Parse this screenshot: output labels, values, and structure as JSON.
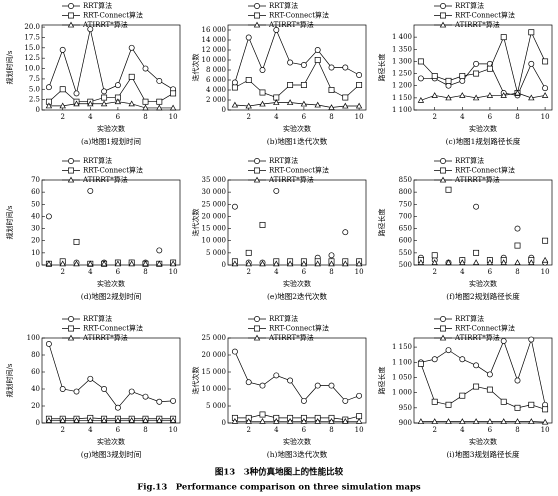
{
  "figure": {
    "caption_cn": "图13　3种仿真地图上的性能比较",
    "caption_en": "Fig.13　Performance comparison on three simulation maps"
  },
  "chart_data": [
    {
      "type": "line",
      "title": "(a)地图1规划时间",
      "xlabel": "实验次数",
      "ylabel": "规划时间/s",
      "x": [
        1,
        2,
        3,
        4,
        5,
        6,
        7,
        8,
        9,
        10
      ],
      "xlim": [
        0.5,
        10.5
      ],
      "xticks": [
        2,
        4,
        6,
        8,
        10
      ],
      "ylim": [
        0,
        20.5
      ],
      "yticks": [
        0,
        2.5,
        {
          "value": 5,
          "label": "5.0"
        },
        7.5,
        {
          "value": 10,
          "label": "10.0"
        },
        12.5,
        {
          "value": 15,
          "label": "15.0"
        },
        17.5,
        {
          "value": 20,
          "label": "20.0"
        }
      ],
      "series": [
        {
          "name": "RRT算法",
          "color": "#000000",
          "marker": "circle",
          "values": [
            5.5,
            14.5,
            4,
            19.5,
            4.5,
            6,
            15,
            10,
            7,
            5
          ]
        },
        {
          "name": "RRT-Connect算法",
          "color": "#000000",
          "marker": "square",
          "values": [
            2,
            5,
            2,
            2,
            3,
            3,
            8,
            2,
            2,
            4
          ]
        },
        {
          "name": "ATIRRT*算法",
          "color": "#000000",
          "marker": "triangle",
          "values": [
            1,
            1,
            1.5,
            1.5,
            1.5,
            2,
            1.5,
            0.5,
            0.5,
            0.5
          ]
        }
      ]
    },
    {
      "type": "line",
      "title": "(b)地图1迭代次数",
      "xlabel": "实验次数",
      "ylabel": "迭代次数",
      "x": [
        1,
        2,
        3,
        4,
        5,
        6,
        7,
        8,
        9,
        10
      ],
      "xlim": [
        0.5,
        10.5
      ],
      "xticks": [
        2,
        4,
        6,
        8,
        10
      ],
      "ylim": [
        0,
        17000
      ],
      "yticks": [
        0,
        {
          "value": 2000,
          "label": "2 000"
        },
        {
          "value": 4000,
          "label": "4 000"
        },
        {
          "value": 6000,
          "label": "6 000"
        },
        {
          "value": 8000,
          "label": "8 000"
        },
        {
          "value": 10000,
          "label": "10 000"
        },
        {
          "value": 12000,
          "label": "12 000"
        },
        {
          "value": 14000,
          "label": "14 000"
        },
        {
          "value": 16000,
          "label": "16 000"
        }
      ],
      "series": [
        {
          "name": "RRT算法",
          "color": "#000000",
          "marker": "circle",
          "values": [
            5500,
            14500,
            8000,
            16000,
            9500,
            9000,
            12000,
            8500,
            8500,
            7000
          ]
        },
        {
          "name": "RRT-Connect算法",
          "color": "#000000",
          "marker": "square",
          "values": [
            4500,
            6000,
            3500,
            2500,
            5000,
            5000,
            10000,
            4000,
            2500,
            5000
          ]
        },
        {
          "name": "ATIRRT*算法",
          "color": "#000000",
          "marker": "triangle",
          "values": [
            1000,
            800,
            1200,
            1500,
            1500,
            1200,
            1000,
            500,
            800,
            800
          ]
        }
      ]
    },
    {
      "type": "line",
      "title": "(c)地图1规划路径长度",
      "xlabel": "实验次数",
      "ylabel": "路径长度",
      "x": [
        1,
        2,
        3,
        4,
        5,
        6,
        7,
        8,
        9,
        10
      ],
      "xlim": [
        0.5,
        10.5
      ],
      "xticks": [
        2,
        4,
        6,
        8,
        10
      ],
      "ylim": [
        1100,
        1450
      ],
      "yticks": [
        {
          "value": 1100,
          "label": "1 100"
        },
        {
          "value": 1150,
          "label": "1 150"
        },
        {
          "value": 1200,
          "label": "1 200"
        },
        {
          "value": 1250,
          "label": "1 250"
        },
        {
          "value": 1300,
          "label": "1 300"
        },
        {
          "value": 1350,
          "label": "1 350"
        },
        {
          "value": 1400,
          "label": "1 400"
        }
      ],
      "series": [
        {
          "name": "RRT算法",
          "color": "#000000",
          "marker": "circle",
          "values": [
            1230,
            1230,
            1200,
            1220,
            1290,
            1290,
            1170,
            1160,
            1290,
            1190
          ]
        },
        {
          "name": "RRT-Connect算法",
          "color": "#000000",
          "marker": "square",
          "values": [
            1300,
            1240,
            1220,
            1240,
            1250,
            1270,
            1400,
            1170,
            1420,
            1300
          ]
        },
        {
          "name": "ATIRRT*算法",
          "color": "#000000",
          "marker": "triangle",
          "values": [
            1140,
            1160,
            1150,
            1160,
            1150,
            1160,
            1160,
            1170,
            1150,
            1160
          ]
        }
      ]
    },
    {
      "type": "scatter",
      "title": "(d)地图2规划时间",
      "xlabel": "实验次数",
      "ylabel": "规划时间/s",
      "x": [
        1,
        2,
        3,
        4,
        5,
        6,
        7,
        8,
        9,
        10
      ],
      "xlim": [
        0.5,
        10.5
      ],
      "xticks": [
        2,
        4,
        6,
        8,
        10
      ],
      "ylim": [
        0,
        70
      ],
      "yticks": [
        0,
        10,
        20,
        30,
        40,
        50,
        60,
        70
      ],
      "series": [
        {
          "name": "RRT算法",
          "color": "#000000",
          "marker": "circle",
          "values": [
            40,
            2,
            2,
            61,
            2,
            2,
            2,
            2,
            12,
            2
          ]
        },
        {
          "name": "RRT-Connect算法",
          "color": "#000000",
          "marker": "square",
          "values": [
            1,
            3,
            19,
            1,
            1,
            2,
            2,
            1,
            1,
            2
          ]
        },
        {
          "name": "ATIRRT*算法",
          "color": "#000000",
          "marker": "triangle",
          "values": [
            1,
            1,
            1,
            1,
            1,
            1,
            1,
            1,
            1,
            1
          ]
        }
      ]
    },
    {
      "type": "scatter",
      "title": "(e)地图2迭代次数",
      "xlabel": "实验次数",
      "ylabel": "迭代次数",
      "x": [
        1,
        2,
        3,
        4,
        5,
        6,
        7,
        8,
        9,
        10
      ],
      "xlim": [
        0.5,
        10.5
      ],
      "xticks": [
        2,
        4,
        6,
        8,
        10
      ],
      "ylim": [
        0,
        35000
      ],
      "yticks": [
        0,
        {
          "value": 5000,
          "label": "5 000"
        },
        {
          "value": 10000,
          "label": "10 000"
        },
        {
          "value": 15000,
          "label": "15 000"
        },
        {
          "value": 20000,
          "label": "20 000"
        },
        {
          "value": 25000,
          "label": "25 000"
        },
        {
          "value": 30000,
          "label": "30 000"
        },
        {
          "value": 35000,
          "label": "35 000"
        }
      ],
      "series": [
        {
          "name": "RRT算法",
          "color": "#000000",
          "marker": "circle",
          "values": [
            24000,
            1000,
            1000,
            30500,
            1000,
            1000,
            3000,
            4000,
            13500,
            1500
          ]
        },
        {
          "name": "RRT-Connect算法",
          "color": "#000000",
          "marker": "square",
          "values": [
            1500,
            5000,
            16500,
            1500,
            1500,
            1500,
            1500,
            1500,
            1500,
            1500
          ]
        },
        {
          "name": "ATIRRT*算法",
          "color": "#000000",
          "marker": "triangle",
          "values": [
            500,
            500,
            500,
            500,
            500,
            500,
            500,
            500,
            500,
            500
          ]
        }
      ]
    },
    {
      "type": "scatter",
      "title": "(f)地图2规划路径长度",
      "xlabel": "实验次数",
      "ylabel": "路径长度",
      "x": [
        1,
        2,
        3,
        4,
        5,
        6,
        7,
        8,
        9,
        10
      ],
      "xlim": [
        0.5,
        10.5
      ],
      "xticks": [
        2,
        4,
        6,
        8,
        10
      ],
      "ylim": [
        500,
        850
      ],
      "yticks": [
        500,
        550,
        600,
        650,
        700,
        750,
        800,
        850
      ],
      "series": [
        {
          "name": "RRT算法",
          "color": "#000000",
          "marker": "circle",
          "values": [
            530,
            520,
            510,
            520,
            740,
            520,
            530,
            650,
            530,
            510
          ]
        },
        {
          "name": "RRT-Connect算法",
          "color": "#000000",
          "marker": "square",
          "values": [
            520,
            540,
            810,
            520,
            550,
            520,
            520,
            580,
            520,
            600
          ]
        },
        {
          "name": "ATIRRT*算法",
          "color": "#000000",
          "marker": "triangle",
          "values": [
            510,
            510,
            510,
            510,
            510,
            510,
            510,
            510,
            510,
            520
          ]
        }
      ]
    },
    {
      "type": "line",
      "title": "(g)地图3规划时间",
      "xlabel": "实验次数",
      "ylabel": "规划时间/s",
      "x": [
        1,
        2,
        3,
        4,
        5,
        6,
        7,
        8,
        9,
        10
      ],
      "xlim": [
        0.5,
        10.5
      ],
      "xticks": [
        2,
        4,
        6,
        8,
        10
      ],
      "ylim": [
        0,
        100
      ],
      "yticks": [
        0,
        20,
        40,
        60,
        80,
        100
      ],
      "series": [
        {
          "name": "RRT算法",
          "color": "#000000",
          "marker": "circle",
          "values": [
            93,
            40,
            37,
            52,
            40,
            18,
            37,
            31,
            25,
            26
          ]
        },
        {
          "name": "RRT-Connect算法",
          "color": "#000000",
          "marker": "square",
          "values": [
            5,
            5,
            5,
            6,
            5,
            5,
            5,
            5,
            5,
            5
          ]
        },
        {
          "name": "ATIRRT*算法",
          "color": "#000000",
          "marker": "triangle",
          "values": [
            3,
            3,
            3,
            3,
            3,
            3,
            3,
            3,
            3,
            3
          ]
        }
      ]
    },
    {
      "type": "line",
      "title": "(h)地图3迭代次数",
      "xlabel": "实验次数",
      "ylabel": "迭代次数",
      "x": [
        1,
        2,
        3,
        4,
        5,
        6,
        7,
        8,
        9,
        10
      ],
      "xlim": [
        0.5,
        10.5
      ],
      "xticks": [
        2,
        4,
        6,
        8,
        10
      ],
      "ylim": [
        0,
        25000
      ],
      "yticks": [
        0,
        {
          "value": 5000,
          "label": "5 000"
        },
        {
          "value": 10000,
          "label": "10 000"
        },
        {
          "value": 15000,
          "label": "15 000"
        },
        {
          "value": 20000,
          "label": "20 000"
        },
        {
          "value": 25000,
          "label": "25 000"
        }
      ],
      "series": [
        {
          "name": "RRT算法",
          "color": "#000000",
          "marker": "circle",
          "values": [
            21000,
            12000,
            11000,
            14000,
            12500,
            6500,
            11000,
            11000,
            6500,
            8000
          ]
        },
        {
          "name": "RRT-Connect算法",
          "color": "#000000",
          "marker": "square",
          "values": [
            1500,
            1500,
            2500,
            1500,
            1500,
            1500,
            1500,
            1500,
            1000,
            2000
          ]
        },
        {
          "name": "ATIRRT*算法",
          "color": "#000000",
          "marker": "triangle",
          "values": [
            500,
            500,
            500,
            500,
            500,
            500,
            500,
            500,
            500,
            500
          ]
        }
      ]
    },
    {
      "type": "line",
      "title": "(i)地图3规划路径长度",
      "xlabel": "实验次数",
      "ylabel": "路径长度",
      "x": [
        1,
        2,
        3,
        4,
        5,
        6,
        7,
        8,
        9,
        10
      ],
      "xlim": [
        0.5,
        10.5
      ],
      "xticks": [
        2,
        4,
        6,
        8,
        10
      ],
      "ylim": [
        900,
        1180
      ],
      "yticks": [
        900,
        950,
        {
          "value": 1000,
          "label": "1 000"
        },
        {
          "value": 1050,
          "label": "1 050"
        },
        {
          "value": 1100,
          "label": "1 100"
        },
        {
          "value": 1150,
          "label": "1 150"
        }
      ],
      "series": [
        {
          "name": "RRT算法",
          "color": "#000000",
          "marker": "circle",
          "values": [
            1100,
            1110,
            1140,
            1110,
            1090,
            1060,
            1170,
            1040,
            1175,
            960
          ]
        },
        {
          "name": "RRT-Connect算法",
          "color": "#000000",
          "marker": "square",
          "values": [
            1095,
            970,
            960,
            990,
            1020,
            1010,
            970,
            950,
            960,
            945
          ]
        },
        {
          "name": "ATIRRT*算法",
          "color": "#000000",
          "marker": "triangle",
          "values": [
            905,
            905,
            905,
            905,
            905,
            905,
            905,
            905,
            905,
            903
          ]
        }
      ]
    }
  ]
}
